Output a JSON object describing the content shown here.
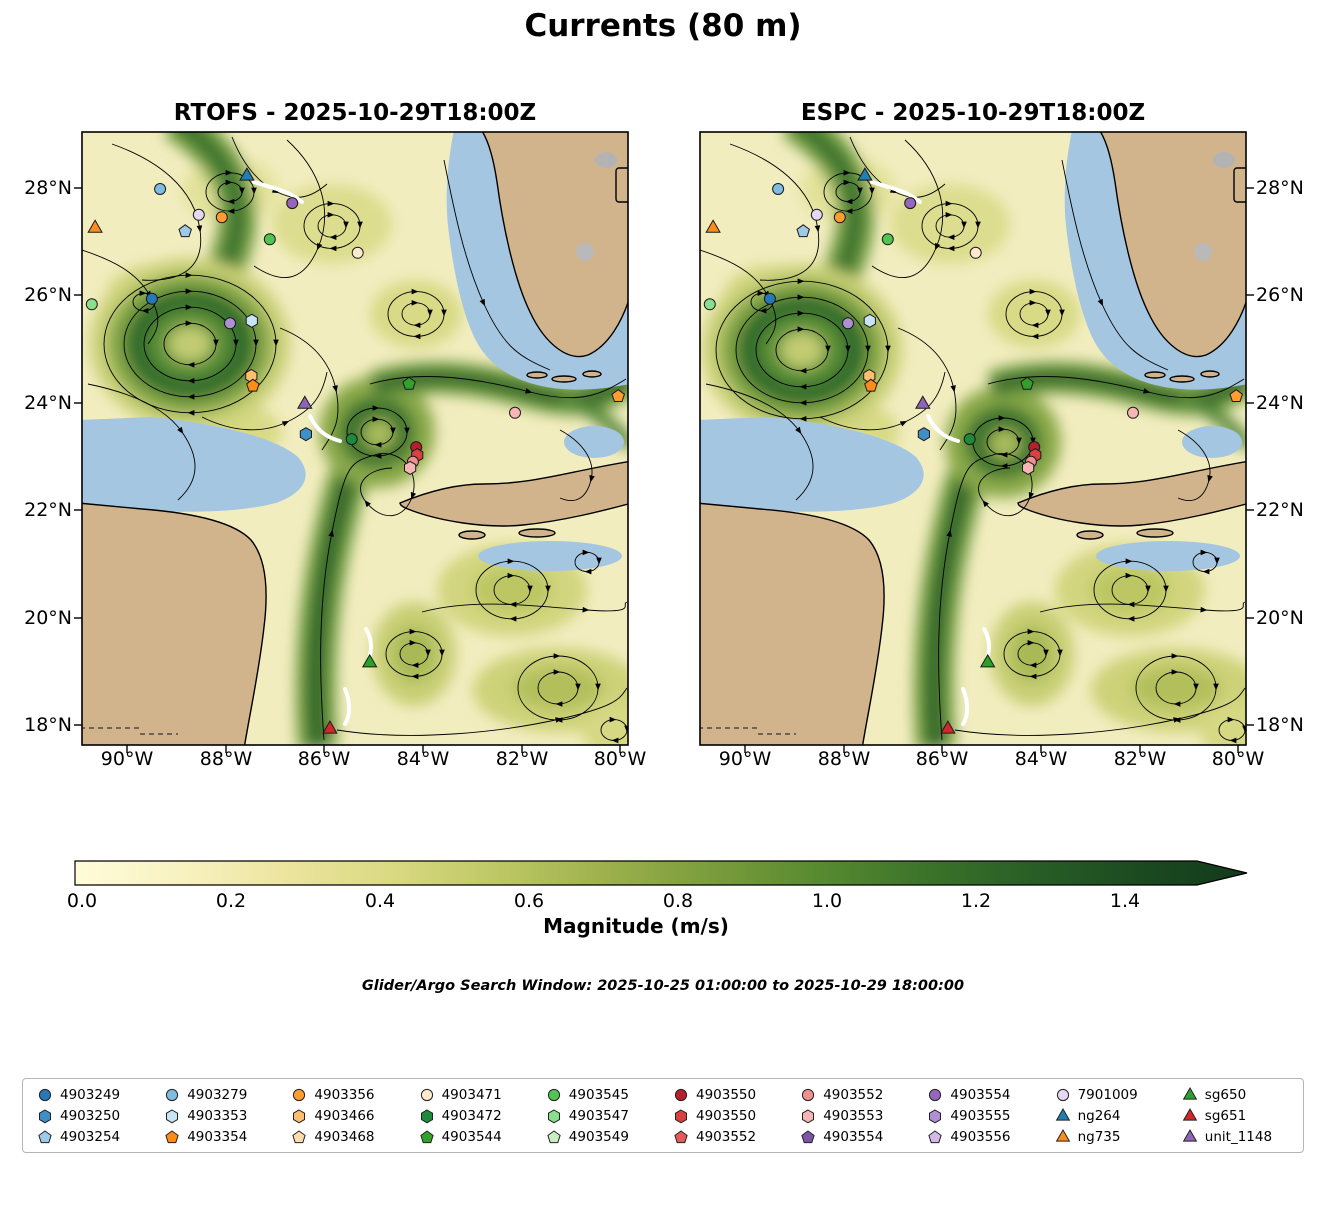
{
  "figure": {
    "title": "Currents (80 m)",
    "search_window": "Glider/Argo Search Window: 2025-10-25 01:00:00 to 2025-10-29 18:00:00"
  },
  "chart_data": {
    "type": "heatmap",
    "title": "Currents (80 m)",
    "description": "Side-by-side ocean current magnitude maps with streamlines over the Gulf of Mexico comparing two models, with Argo float and glider positions overlaid",
    "subplots": [
      {
        "model": "RTOFS",
        "valid_time": "2025-10-29T18:00Z",
        "title": "RTOFS - 2025-10-29T18:00Z"
      },
      {
        "model": "ESPC",
        "valid_time": "2025-10-29T18:00Z",
        "title": "ESPC - 2025-10-29T18:00Z"
      }
    ],
    "x_axis": {
      "ticks": [
        "90°W",
        "88°W",
        "86°W",
        "84°W",
        "82°W",
        "80°W"
      ]
    },
    "y_axis": {
      "ticks": [
        "28°N",
        "26°N",
        "24°N",
        "22°N",
        "20°N",
        "18°N"
      ]
    },
    "colorbar": {
      "label": "Magnitude (m/s)",
      "ticks": [
        "0.0",
        "0.2",
        "0.4",
        "0.6",
        "0.8",
        "1.0",
        "1.2",
        "1.4"
      ],
      "vmin": 0.0,
      "vmax": 1.5,
      "extend": "max",
      "colors": [
        "#fffcda",
        "#f8f2c0",
        "#ece49e",
        "#d9d981",
        "#bcc763",
        "#9cb04c",
        "#799c3c",
        "#578a30",
        "#3b7329",
        "#285e26",
        "#1b4a20",
        "#123a1b"
      ]
    },
    "platform_markers": [
      {
        "id": "ng264",
        "shape": "triangle",
        "color": "#1f7fb4",
        "fx": 0.302,
        "fy": 0.072
      },
      {
        "id": "ng735",
        "shape": "triangle",
        "color": "#ff8c1a",
        "fx": 0.024,
        "fy": 0.157
      },
      {
        "id": "4903279",
        "shape": "circle",
        "color": "#7fbde0",
        "fx": 0.143,
        "fy": 0.093
      },
      {
        "id": "7901009",
        "shape": "circle",
        "color": "#e6d7f2",
        "fx": 0.214,
        "fy": 0.135
      },
      {
        "id": "4903254",
        "shape": "pentagon",
        "color": "#9ecae8",
        "fx": 0.189,
        "fy": 0.162
      },
      {
        "id": "4903356",
        "shape": "circle",
        "color": "#ff9e2e",
        "fx": 0.256,
        "fy": 0.139
      },
      {
        "id": "4903554",
        "shape": "circle",
        "color": "#9467bd",
        "fx": 0.385,
        "fy": 0.116
      },
      {
        "id": "4903545",
        "shape": "circle",
        "color": "#52c452",
        "fx": 0.344,
        "fy": 0.175
      },
      {
        "id": "4903471",
        "shape": "circle",
        "color": "#ffe9cf",
        "fx": 0.505,
        "fy": 0.197
      },
      {
        "id": "4903547",
        "shape": "circle",
        "color": "#8ae08a",
        "fx": 0.018,
        "fy": 0.281
      },
      {
        "id": "4903249",
        "shape": "circle",
        "color": "#2878b8",
        "fx": 0.128,
        "fy": 0.272
      },
      {
        "id": "4903555",
        "shape": "circle",
        "color": "#b08fd4",
        "fx": 0.271,
        "fy": 0.312
      },
      {
        "id": "4903353",
        "shape": "hexagon",
        "color": "#c9e4f2",
        "fx": 0.311,
        "fy": 0.308
      },
      {
        "id": "4903466",
        "shape": "hexagon",
        "color": "#fdbf6f",
        "fx": 0.31,
        "fy": 0.398
      },
      {
        "id": "4903354",
        "shape": "pentagon",
        "color": "#ff8c1a",
        "fx": 0.313,
        "fy": 0.414
      },
      {
        "id": "4903544",
        "shape": "pentagon",
        "color": "#33a02c",
        "fx": 0.599,
        "fy": 0.411
      },
      {
        "id": "4903553",
        "shape": "circle",
        "color": "#f7b6b6",
        "fx": 0.793,
        "fy": 0.458
      },
      {
        "id": "4903552",
        "shape": "pentagon",
        "color": "#ff9e2e",
        "fx": 0.982,
        "fy": 0.431
      },
      {
        "id": "unit_1148",
        "shape": "triangle",
        "color": "#8e63b8",
        "fx": 0.408,
        "fy": 0.444
      },
      {
        "id": "4903250",
        "shape": "hexagon",
        "color": "#3f8fc6",
        "fx": 0.41,
        "fy": 0.493
      },
      {
        "id": "4903472",
        "shape": "circle",
        "color": "#1e8b3c",
        "fx": 0.494,
        "fy": 0.501
      },
      {
        "id": "4903550",
        "shape": "circle",
        "color": "#b81f2d",
        "fx": 0.612,
        "fy": 0.514
      },
      {
        "id": "4903550",
        "shape": "hexagon",
        "color": "#d94040",
        "fx": 0.614,
        "fy": 0.527
      },
      {
        "id": "4903552",
        "shape": "circle",
        "color": "#f09090",
        "fx": 0.606,
        "fy": 0.538
      },
      {
        "id": "4903553",
        "shape": "hexagon",
        "color": "#f7b6b6",
        "fx": 0.601,
        "fy": 0.548
      },
      {
        "id": "sg650",
        "shape": "triangle",
        "color": "#2ca02c",
        "fx": 0.527,
        "fy": 0.866
      },
      {
        "id": "sg651",
        "shape": "triangle",
        "color": "#d62728",
        "fx": 0.454,
        "fy": 0.974
      }
    ]
  },
  "legend": {
    "entries": [
      {
        "label": "4903249",
        "shape": "circle",
        "color": "#2878b8"
      },
      {
        "label": "4903250",
        "shape": "hexagon",
        "color": "#3f8fc6"
      },
      {
        "label": "4903254",
        "shape": "pentagon",
        "color": "#9ecae8"
      },
      {
        "label": "4903279",
        "shape": "circle",
        "color": "#7fbde0"
      },
      {
        "label": "4903353",
        "shape": "hexagon",
        "color": "#c9e4f2"
      },
      {
        "label": "4903354",
        "shape": "pentagon",
        "color": "#ff8c1a"
      },
      {
        "label": "4903356",
        "shape": "circle",
        "color": "#ff9e2e"
      },
      {
        "label": "4903466",
        "shape": "hexagon",
        "color": "#fdbf6f"
      },
      {
        "label": "4903468",
        "shape": "pentagon",
        "color": "#fedcad"
      },
      {
        "label": "4903471",
        "shape": "circle",
        "color": "#ffe9cf"
      },
      {
        "label": "4903472",
        "shape": "hexagon",
        "color": "#1e8b3c"
      },
      {
        "label": "4903544",
        "shape": "pentagon",
        "color": "#33a02c"
      },
      {
        "label": "4903545",
        "shape": "circle",
        "color": "#52c452"
      },
      {
        "label": "4903547",
        "shape": "hexagon",
        "color": "#8ae08a"
      },
      {
        "label": "4903549",
        "shape": "pentagon",
        "color": "#c9efc0"
      },
      {
        "label": "4903550",
        "shape": "circle",
        "color": "#b81f2d"
      },
      {
        "label": "4903550",
        "shape": "hexagon",
        "color": "#d94040"
      },
      {
        "label": "4903552",
        "shape": "pentagon",
        "color": "#e25c5c"
      },
      {
        "label": "4903552",
        "shape": "circle",
        "color": "#f09090"
      },
      {
        "label": "4903553",
        "shape": "hexagon",
        "color": "#f7b6b6"
      },
      {
        "label": "4903554",
        "shape": "pentagon",
        "color": "#7d54a8"
      },
      {
        "label": "4903554",
        "shape": "circle",
        "color": "#9467bd"
      },
      {
        "label": "4903555",
        "shape": "hexagon",
        "color": "#b08fd4"
      },
      {
        "label": "4903556",
        "shape": "pentagon",
        "color": "#d4b9e8"
      },
      {
        "label": "7901009",
        "shape": "circle",
        "color": "#e6d7f2"
      },
      {
        "label": "ng264",
        "shape": "triangle",
        "color": "#1f7fb4"
      },
      {
        "label": "ng735",
        "shape": "triangle",
        "color": "#ff8c1a"
      },
      {
        "label": "sg650",
        "shape": "triangle",
        "color": "#2ca02c"
      },
      {
        "label": "sg651",
        "shape": "triangle",
        "color": "#d62728"
      },
      {
        "label": "unit_1148",
        "shape": "triangle",
        "color": "#8e63b8"
      }
    ]
  }
}
